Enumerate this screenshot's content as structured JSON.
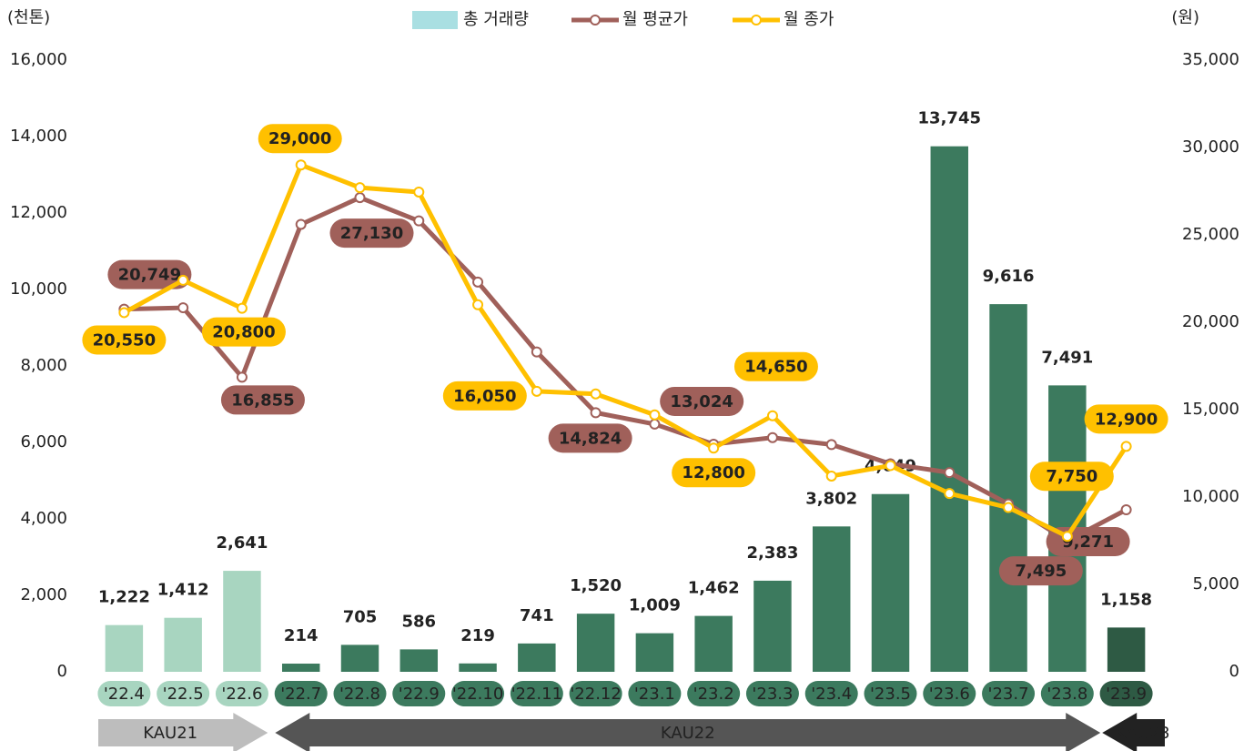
{
  "chart_data": {
    "type": "bar-line",
    "y_label": "(천톤)",
    "y2_label": "(원)",
    "categories": [
      "'22.4",
      "'22.5",
      "'22.6",
      "'22.7",
      "'22.8",
      "'22.9",
      "'22.10",
      "'22.11",
      "'22.12",
      "'23.1",
      "'23.2",
      "'23.3",
      "'23.4",
      "'23.5",
      "'23.6",
      "'23.7",
      "'23.8",
      "'23.9"
    ],
    "series": [
      {
        "name": "총 거래량",
        "type": "bar",
        "color": "#a9dfe2",
        "colors": [
          "#a8d5c0",
          "#a8d5c0",
          "#a8d5c0",
          "#3c7a5e",
          "#3c7a5e",
          "#3c7a5e",
          "#3c7a5e",
          "#3c7a5e",
          "#3c7a5e",
          "#3c7a5e",
          "#3c7a5e",
          "#3c7a5e",
          "#3c7a5e",
          "#3c7a5e",
          "#3c7a5e",
          "#3c7a5e",
          "#3c7a5e",
          "#2e5a44"
        ],
        "values": [
          1222,
          1412,
          2641,
          214,
          705,
          586,
          219,
          741,
          1520,
          1009,
          1462,
          2383,
          3802,
          4649,
          13745,
          9616,
          7491,
          1158
        ],
        "value_labels": [
          "1,222",
          "1,412",
          "2,641",
          "214",
          "705",
          "586",
          "219",
          "741",
          "1,520",
          "1,009",
          "1,462",
          "2,383",
          "3,802",
          "4,649",
          "13,745",
          "9,616",
          "7,491",
          "1,158"
        ]
      },
      {
        "name": "월 평균가",
        "type": "line",
        "axis": "y2",
        "color": "#a0605a",
        "values": [
          20749,
          20830,
          16855,
          25600,
          27130,
          25800,
          22300,
          18300,
          14824,
          14170,
          13024,
          13400,
          13000,
          11900,
          11400,
          9600,
          7495,
          9271
        ],
        "value_labels": [
          "20,749",
          null,
          "16,855",
          null,
          "27,130",
          null,
          null,
          null,
          "14,824",
          null,
          "13,024",
          null,
          null,
          null,
          null,
          null,
          "7,495",
          "9,271"
        ]
      },
      {
        "name": "월 종가",
        "type": "line",
        "axis": "y2",
        "color": "#ffc000",
        "values": [
          20550,
          22400,
          20800,
          29000,
          27700,
          27450,
          21000,
          16050,
          15900,
          14700,
          12800,
          14650,
          11200,
          11800,
          10200,
          9400,
          7750,
          12900
        ],
        "value_labels": [
          "20,550",
          null,
          "20,800",
          "29,000",
          null,
          null,
          null,
          "16,050",
          null,
          null,
          "12,800",
          "14,650",
          null,
          null,
          null,
          null,
          "7,750",
          "12,900"
        ]
      }
    ],
    "ylim": [
      0,
      16000
    ],
    "yticks": [
      0,
      {
        "value": 2000,
        "label": "2,000"
      },
      {
        "value": 4000,
        "label": "4,000"
      },
      {
        "value": 6000,
        "label": "6,000"
      },
      {
        "value": 8000,
        "label": "8,000"
      },
      {
        "value": 10000,
        "label": "10,000"
      },
      {
        "value": 12000,
        "label": "12,000"
      },
      {
        "value": 14000,
        "label": "14,000"
      },
      {
        "value": 16000,
        "label": "16,000"
      }
    ],
    "y2lim": [
      0,
      35000
    ],
    "y2ticks": [
      0,
      {
        "value": 5000,
        "label": "5,000"
      },
      {
        "value": 10000,
        "label": "10,000"
      },
      {
        "value": 15000,
        "label": "15,000"
      },
      {
        "value": 20000,
        "label": "20,000"
      },
      {
        "value": 25000,
        "label": "25,000"
      },
      {
        "value": 30000,
        "label": "30,000"
      },
      {
        "value": 35000,
        "label": "35,000"
      }
    ],
    "periods": [
      {
        "label": "KAU21",
        "from": "'22.4",
        "to": "'22.6",
        "direction": "right",
        "color": "#bdbdbd"
      },
      {
        "label": "KAU22",
        "from": "'22.7",
        "to": "'23.8",
        "direction": "both",
        "color": "#555555"
      },
      {
        "label": "KAU23",
        "from": "'23.9",
        "to": "'23.9",
        "direction": "left",
        "color": "#222222"
      }
    ]
  }
}
